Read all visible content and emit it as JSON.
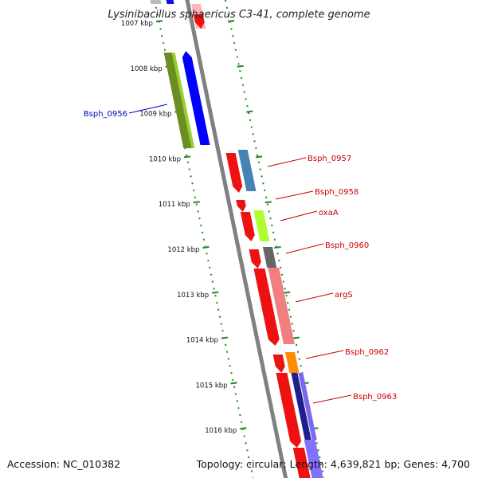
{
  "title": "Lysinibacillus sphaericus C3-41, complete genome",
  "accession": "Accession: NC_010382",
  "topology": "Topology: circular; Length: 4,639,821 bp; Genes: 4,700",
  "colors": {
    "backbone": "#808080",
    "tick_dots": "#1f8a1f",
    "label_red": "#cc0000",
    "label_blue": "#0000bb"
  },
  "tick_labels": [
    "1007 kbp",
    "1008 kbp",
    "1009 kbp",
    "1010 kbp",
    "1011 kbp",
    "1012 kbp",
    "1013 kbp",
    "1014 kbp",
    "1015 kbp",
    "1016 kbp"
  ],
  "gene_labels": [
    {
      "text": "Bsph_0956",
      "color": "#0000bb",
      "side": "left"
    },
    {
      "text": "Bsph_0957",
      "color": "#cc0000",
      "side": "right"
    },
    {
      "text": "Bsph_0958",
      "color": "#cc0000",
      "side": "right"
    },
    {
      "text": "oxaA",
      "color": "#cc0000",
      "side": "right"
    },
    {
      "text": "Bsph_0960",
      "color": "#cc0000",
      "side": "right"
    },
    {
      "text": "argS",
      "color": "#cc0000",
      "side": "right"
    },
    {
      "text": "Bsph_0962",
      "color": "#cc0000",
      "side": "right"
    },
    {
      "text": "Bsph_0963",
      "color": "#cc0000",
      "side": "right"
    }
  ]
}
